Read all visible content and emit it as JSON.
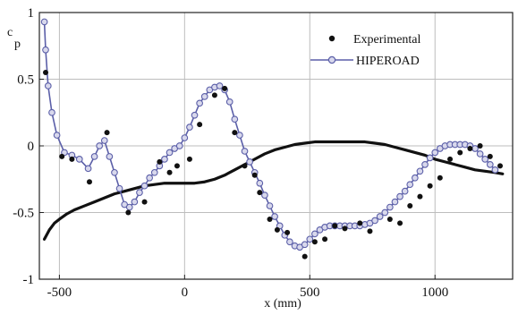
{
  "chart_data": {
    "type": "line",
    "xlabel": "x (mm)",
    "ylabel": "c",
    "ylabel_sub": "p",
    "xlim": [
      -580,
      1310
    ],
    "ylim": [
      -1,
      1
    ],
    "x_ticks": [
      -500,
      0,
      500,
      1000
    ],
    "x_tick_labels": [
      "-500",
      "0",
      "500",
      "1000"
    ],
    "y_ticks": [
      -1,
      -0.5,
      0,
      0.5,
      1
    ],
    "y_tick_labels": [
      "-1",
      "-0.5",
      "0",
      "0.5",
      "1"
    ],
    "grid": true,
    "legend_position": "top-right",
    "legend": {
      "experimental": "Experimental",
      "hiperoad": "HIPEROAD"
    },
    "colors": {
      "hiperoad_line": "#5b5fa8",
      "hiperoad_marker_fill": "#d8d8ec",
      "experimental_marker": "#111111",
      "thick_curve": "#111111",
      "grid": "#bdbdbd"
    },
    "series": [
      {
        "name": "HIPEROAD",
        "style": "line-with-open-circles",
        "x": [
          -560,
          -555,
          -545,
          -530,
          -510,
          -480,
          -450,
          -420,
          -385,
          -360,
          -340,
          -320,
          -300,
          -280,
          -260,
          -240,
          -220,
          -200,
          -180,
          -160,
          -140,
          -120,
          -100,
          -80,
          -60,
          -40,
          -20,
          0,
          20,
          40,
          60,
          80,
          100,
          120,
          140,
          160,
          180,
          200,
          220,
          240,
          260,
          280,
          300,
          320,
          340,
          360,
          380,
          400,
          420,
          440,
          460,
          480,
          500,
          520,
          540,
          560,
          580,
          600,
          620,
          640,
          660,
          680,
          700,
          720,
          740,
          760,
          780,
          800,
          820,
          840,
          860,
          880,
          900,
          920,
          940,
          960,
          980,
          1000,
          1020,
          1040,
          1060,
          1080,
          1100,
          1120,
          1140,
          1160,
          1180,
          1200,
          1220,
          1240
        ],
        "y": [
          0.93,
          0.72,
          0.45,
          0.25,
          0.08,
          -0.05,
          -0.07,
          -0.1,
          -0.17,
          -0.08,
          0.0,
          0.04,
          -0.08,
          -0.2,
          -0.32,
          -0.44,
          -0.46,
          -0.42,
          -0.35,
          -0.3,
          -0.24,
          -0.2,
          -0.15,
          -0.1,
          -0.05,
          -0.02,
          0.0,
          0.06,
          0.14,
          0.23,
          0.32,
          0.37,
          0.42,
          0.44,
          0.45,
          0.42,
          0.33,
          0.2,
          0.08,
          -0.04,
          -0.12,
          -0.2,
          -0.28,
          -0.37,
          -0.45,
          -0.53,
          -0.6,
          -0.67,
          -0.72,
          -0.75,
          -0.76,
          -0.74,
          -0.7,
          -0.66,
          -0.63,
          -0.61,
          -0.6,
          -0.6,
          -0.6,
          -0.6,
          -0.6,
          -0.6,
          -0.6,
          -0.59,
          -0.58,
          -0.56,
          -0.53,
          -0.5,
          -0.46,
          -0.42,
          -0.38,
          -0.34,
          -0.29,
          -0.24,
          -0.19,
          -0.14,
          -0.09,
          -0.05,
          -0.02,
          0.0,
          0.01,
          0.01,
          0.01,
          0.01,
          0.0,
          -0.02,
          -0.06,
          -0.1,
          -0.14,
          -0.18
        ]
      },
      {
        "name": "Experimental",
        "style": "filled-dots",
        "x": [
          -555,
          -490,
          -450,
          -380,
          -310,
          -225,
          -160,
          -100,
          -60,
          -30,
          20,
          60,
          120,
          160,
          200,
          240,
          280,
          300,
          340,
          370,
          410,
          480,
          520,
          560,
          600,
          640,
          700,
          740,
          820,
          860,
          900,
          940,
          980,
          1020,
          1060,
          1100,
          1140,
          1180,
          1220,
          1260
        ],
        "y": [
          0.55,
          -0.08,
          -0.1,
          -0.27,
          0.1,
          -0.5,
          -0.42,
          -0.12,
          -0.2,
          -0.15,
          -0.1,
          0.16,
          0.38,
          0.43,
          0.1,
          -0.15,
          -0.22,
          -0.35,
          -0.55,
          -0.63,
          -0.65,
          -0.83,
          -0.72,
          -0.7,
          -0.6,
          -0.62,
          -0.58,
          -0.64,
          -0.55,
          -0.58,
          -0.45,
          -0.38,
          -0.3,
          -0.24,
          -0.1,
          -0.05,
          -0.02,
          0.0,
          -0.08,
          -0.15
        ]
      },
      {
        "style": "thick-line",
        "x": [
          -560,
          -540,
          -520,
          -500,
          -470,
          -440,
          -400,
          -360,
          -320,
          -280,
          -240,
          -200,
          -160,
          -120,
          -80,
          -40,
          0,
          40,
          80,
          120,
          160,
          200,
          240,
          280,
          320,
          360,
          400,
          440,
          480,
          520,
          560,
          600,
          640,
          680,
          720,
          760,
          800,
          840,
          880,
          920,
          960,
          1000,
          1040,
          1080,
          1120,
          1160,
          1200,
          1240,
          1270
        ],
        "y": [
          -0.7,
          -0.63,
          -0.58,
          -0.55,
          -0.51,
          -0.48,
          -0.45,
          -0.42,
          -0.39,
          -0.36,
          -0.34,
          -0.32,
          -0.3,
          -0.29,
          -0.28,
          -0.28,
          -0.28,
          -0.28,
          -0.27,
          -0.25,
          -0.22,
          -0.18,
          -0.14,
          -0.1,
          -0.06,
          -0.03,
          -0.01,
          0.01,
          0.02,
          0.03,
          0.03,
          0.03,
          0.03,
          0.03,
          0.03,
          0.02,
          0.01,
          -0.01,
          -0.03,
          -0.05,
          -0.07,
          -0.1,
          -0.12,
          -0.14,
          -0.16,
          -0.18,
          -0.19,
          -0.2,
          -0.21
        ]
      }
    ]
  }
}
